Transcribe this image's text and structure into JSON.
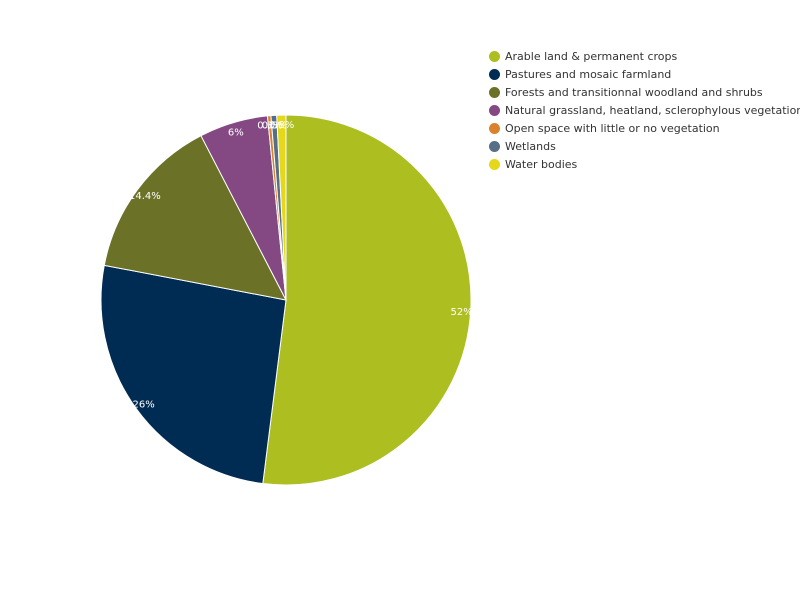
{
  "chart_data": {
    "type": "pie",
    "start_angle_deg": 0,
    "direction": "clockwise",
    "slices": [
      {
        "name": "Arable land & permanent crops",
        "value": 52,
        "label": "52%",
        "color": "#adbe20"
      },
      {
        "name": "Pastures and mosaic farmland",
        "value": 26,
        "label": "26%",
        "color": "#002c54"
      },
      {
        "name": "Forests and transitionnal woodland and shrubs",
        "value": 14.4,
        "label": "14.4%",
        "color": "#6b7228"
      },
      {
        "name": "Natural grassland, heatland, sclerophylous vegetation",
        "value": 6,
        "label": "6%",
        "color": "#844983"
      },
      {
        "name": "Open space with little or no vegetation",
        "value": 0.3,
        "label": "0.3%",
        "color": "#d9822b"
      },
      {
        "name": "Wetlands",
        "value": 0.5,
        "label": "0.5%",
        "color": "#566e86"
      },
      {
        "name": "Water bodies",
        "value": 0.8,
        "label": "0.8%",
        "color": "#e5d81b"
      }
    ]
  }
}
